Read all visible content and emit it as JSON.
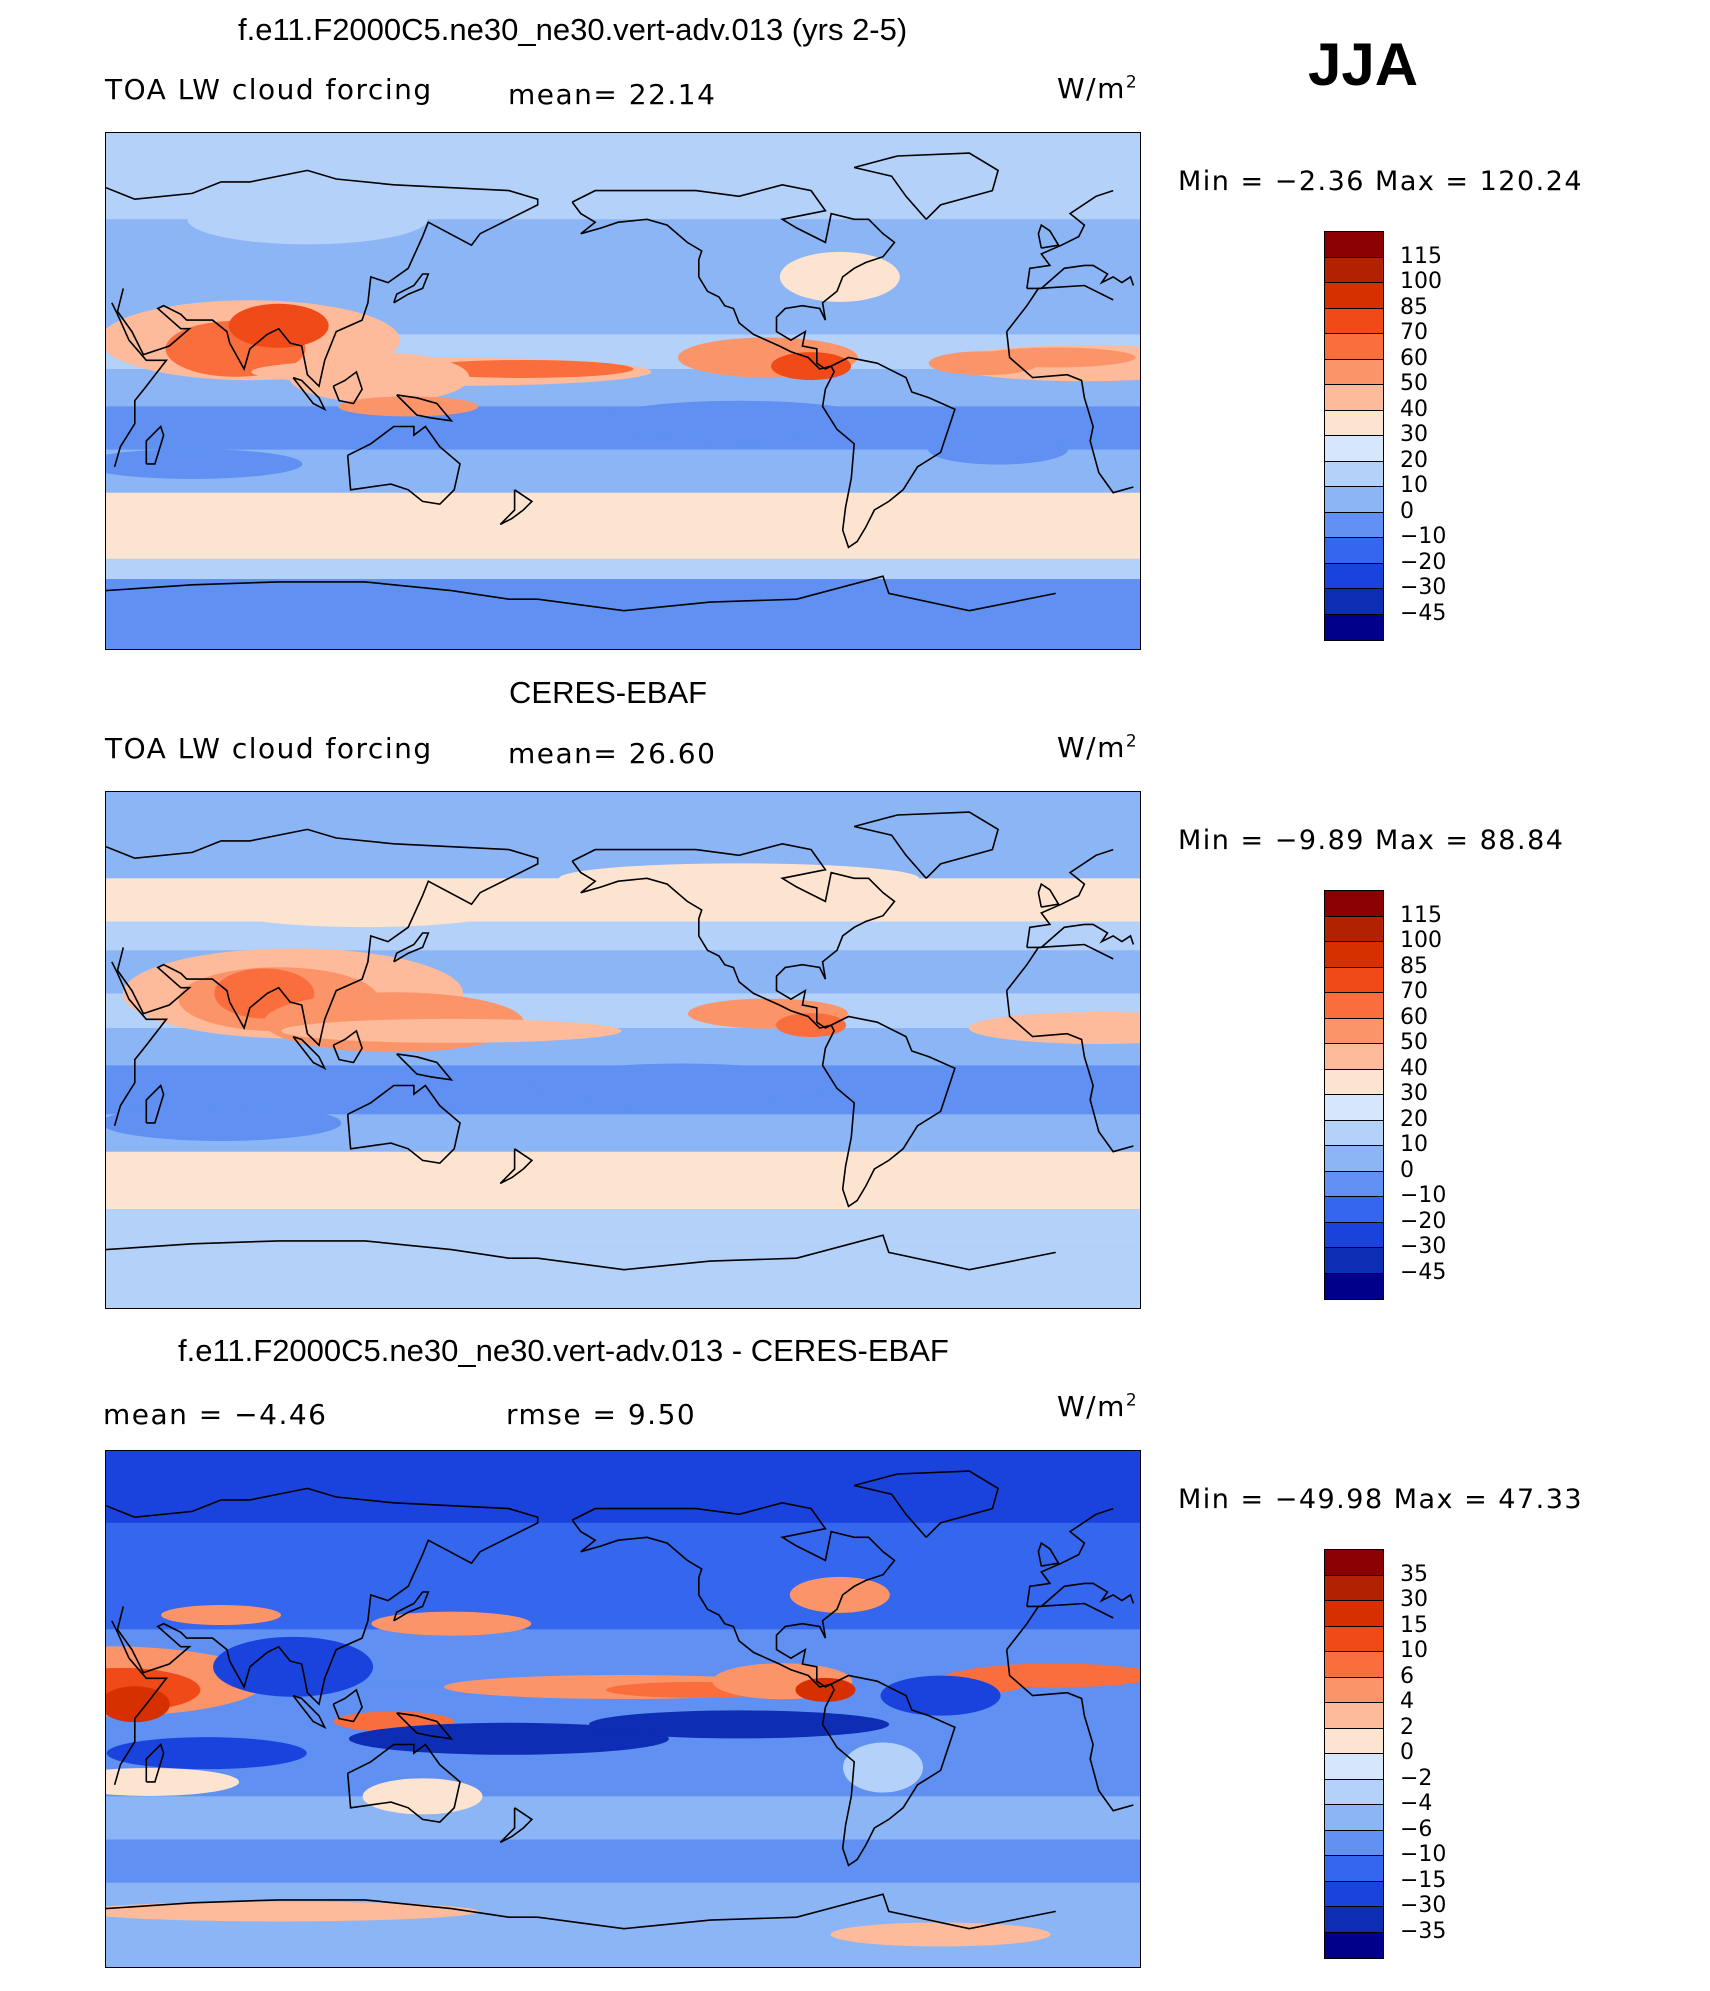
{
  "season": "JJA",
  "panels": [
    {
      "title": "f.e11.F2000C5.ne30_ne30.vert-adv.013 (yrs 2-5)",
      "left_text": "TOA LW cloud forcing",
      "mid_text": "mean=   22.14",
      "units_base": "W/m",
      "units_exp": "2",
      "minmax": "Min  =    −2.36  Max  =  120.24",
      "colorbar_labels": [
        "115",
        "100",
        "85",
        "70",
        "60",
        "50",
        "40",
        "30",
        "20",
        "10",
        "0",
        "−10",
        "−20",
        "−30",
        "−45"
      ],
      "colorbar_colors": [
        "#8b0000",
        "#b22200",
        "#d73000",
        "#f04a18",
        "#fa6e3e",
        "#fc946a",
        "#fdbb9b",
        "#fde4d0",
        "#d7e7fb",
        "#b4d1fa",
        "#8cb5f6",
        "#5f90f2",
        "#3466ee",
        "#1a43dd",
        "#0d2db4",
        "#00008b"
      ],
      "map_type": "model"
    },
    {
      "title": "CERES-EBAF",
      "left_text": "TOA LW cloud forcing",
      "mid_text": "mean=   26.60",
      "units_base": "W/m",
      "units_exp": "2",
      "minmax": "Min  =    −9.89  Max  =    88.84",
      "colorbar_labels": [
        "115",
        "100",
        "85",
        "70",
        "60",
        "50",
        "40",
        "30",
        "20",
        "10",
        "0",
        "−10",
        "−20",
        "−30",
        "−45"
      ],
      "colorbar_colors": [
        "#8b0000",
        "#b22200",
        "#d73000",
        "#f04a18",
        "#fa6e3e",
        "#fc946a",
        "#fdbb9b",
        "#fde4d0",
        "#d7e7fb",
        "#b4d1fa",
        "#8cb5f6",
        "#5f90f2",
        "#3466ee",
        "#1a43dd",
        "#0d2db4",
        "#00008b"
      ],
      "map_type": "obs"
    },
    {
      "title": "f.e11.F2000C5.ne30_ne30.vert-adv.013 - CERES-EBAF",
      "left_text": "mean  =    −4.46",
      "mid_text": "rmse  =     9.50",
      "units_base": "W/m",
      "units_exp": "2",
      "minmax": "Min  = −49.98  Max  =    47.33",
      "colorbar_labels": [
        "35",
        "30",
        "15",
        "10",
        "6",
        "4",
        "2",
        "0",
        "−2",
        "−4",
        "−6",
        "−10",
        "−15",
        "−30",
        "−35"
      ],
      "colorbar_colors": [
        "#8b0000",
        "#b22200",
        "#d73000",
        "#f04a18",
        "#fa6e3e",
        "#fc946a",
        "#fdbb9b",
        "#fde4d0",
        "#d7e7fb",
        "#b4d1fa",
        "#8cb5f6",
        "#5f90f2",
        "#3466ee",
        "#1a43dd",
        "#0d2db4",
        "#00008b"
      ],
      "map_type": "diff"
    }
  ]
}
